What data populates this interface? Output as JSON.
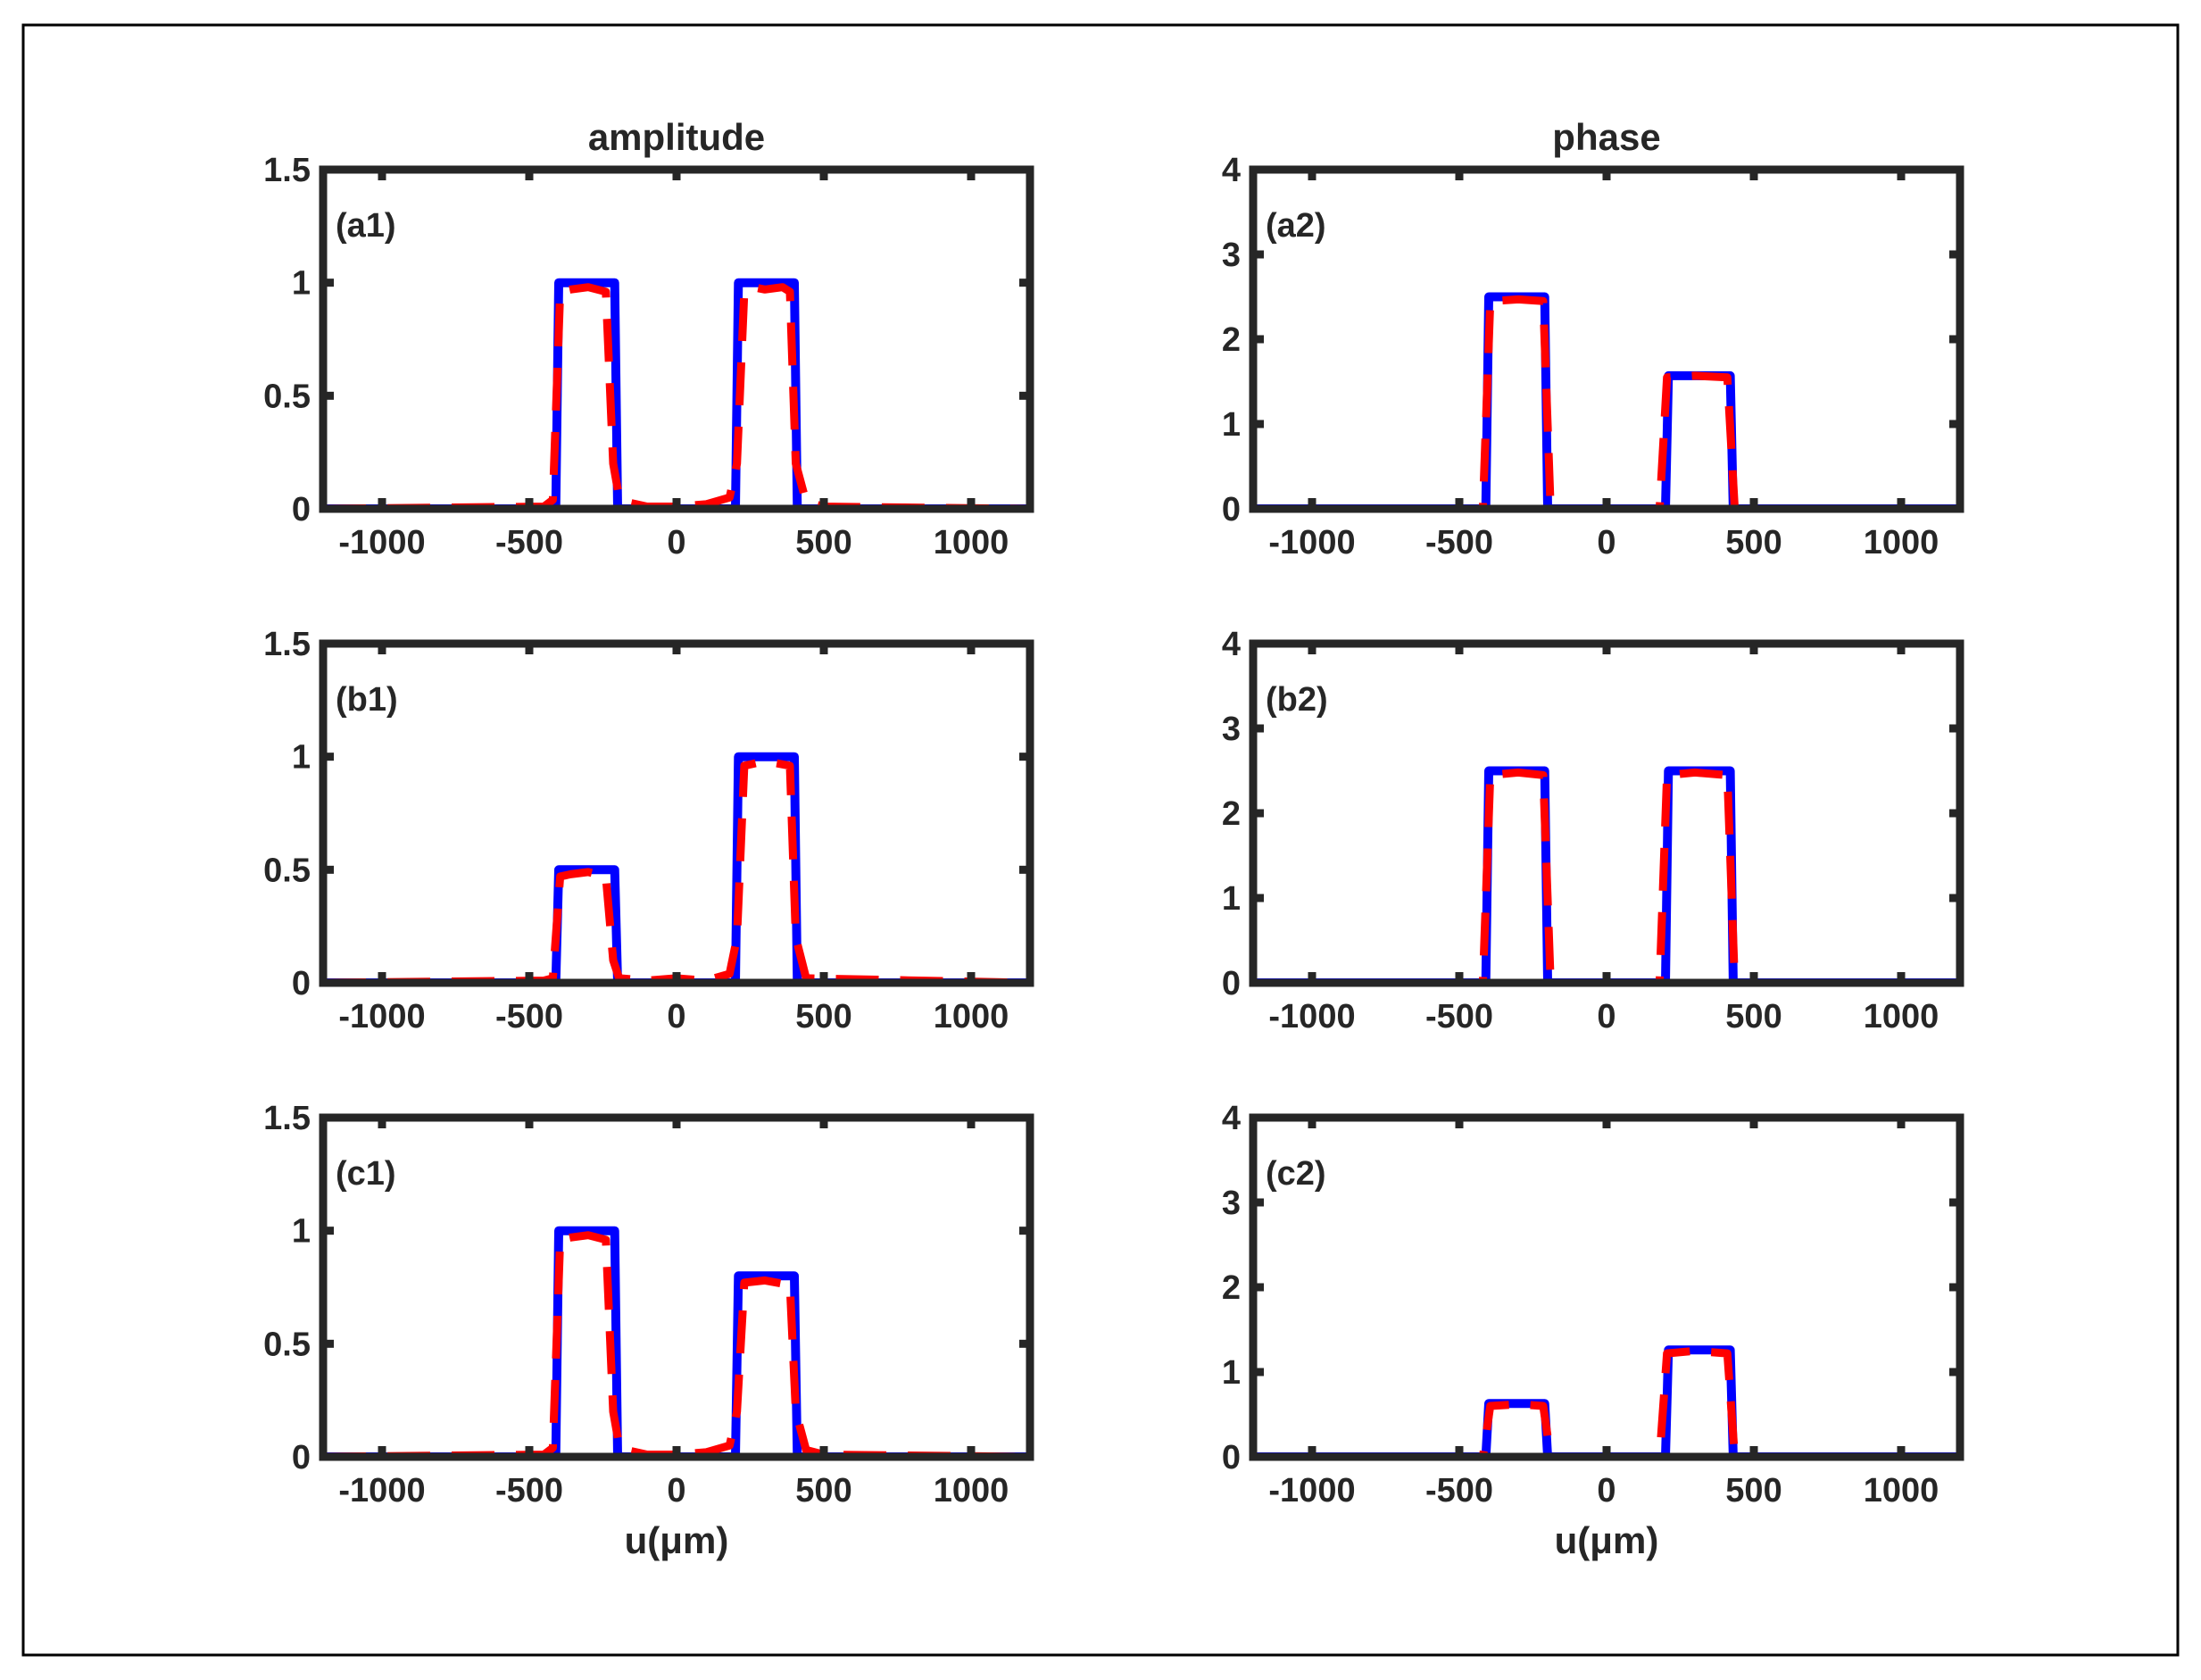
{
  "figure": {
    "column_titles": [
      "amplitude",
      "phase"
    ],
    "xlabel": "u(μm)",
    "colors": {
      "frame": "#262626",
      "border": "#000000",
      "blue": "#0000ff",
      "red": "#ff0000",
      "zero_line": "#262626"
    },
    "legend": "none"
  },
  "chart_data": [
    {
      "type": "line",
      "label": "(a1)",
      "title": "amplitude",
      "xlabel": "",
      "ylabel": "",
      "xlim": [
        -1200,
        1200
      ],
      "ylim": [
        0,
        1.5
      ],
      "xticks": [
        -1000,
        -500,
        0,
        500,
        1000
      ],
      "xtick_labels": [
        "-1000",
        "-500",
        "0",
        "500",
        "1000"
      ],
      "yticks": [
        0,
        0.5,
        1,
        1.5
      ],
      "ytick_labels": [
        "0",
        "0.5",
        "1",
        "1.5"
      ],
      "series": [
        {
          "name": "blue-solid",
          "x": [
            -1200,
            -410,
            -400,
            -210,
            -200,
            200,
            210,
            400,
            410,
            1200
          ],
          "y": [
            0,
            0,
            1,
            1,
            0,
            0,
            1,
            1,
            0,
            0
          ]
        },
        {
          "name": "red-dashed",
          "x": [
            -1200,
            -450,
            -420,
            -395,
            -360,
            -300,
            -240,
            -215,
            -195,
            -170,
            -100,
            0,
            100,
            180,
            205,
            230,
            260,
            300,
            360,
            385,
            405,
            440,
            500,
            1200
          ],
          "y": [
            0,
            0.01,
            0.04,
            0.96,
            0.97,
            0.98,
            0.96,
            0.2,
            0.05,
            0.03,
            0.01,
            0.01,
            0.02,
            0.05,
            0.2,
            0.96,
            0.98,
            0.97,
            0.98,
            0.96,
            0.2,
            0.03,
            0.01,
            0
          ]
        }
      ]
    },
    {
      "type": "line",
      "label": "(a2)",
      "title": "phase",
      "xlabel": "",
      "ylabel": "",
      "xlim": [
        -1200,
        1200
      ],
      "ylim": [
        0,
        4
      ],
      "xticks": [
        -1000,
        -500,
        0,
        500,
        1000
      ],
      "xtick_labels": [
        "-1000",
        "-500",
        "0",
        "500",
        "1000"
      ],
      "yticks": [
        0,
        1,
        2,
        3,
        4
      ],
      "ytick_labels": [
        "0",
        "1",
        "2",
        "3",
        "4"
      ],
      "series": [
        {
          "name": "blue-solid",
          "x": [
            -1200,
            -410,
            -400,
            -210,
            -200,
            200,
            210,
            420,
            430,
            1200
          ],
          "y": [
            0,
            0,
            2.5,
            2.5,
            0,
            0,
            1.57,
            1.57,
            0,
            0
          ]
        },
        {
          "name": "red-dashed",
          "x": [
            -1200,
            -420,
            -395,
            -300,
            -215,
            -190,
            180,
            205,
            300,
            410,
            435,
            1200
          ],
          "y": [
            0,
            0,
            2.45,
            2.47,
            2.45,
            0,
            0,
            1.55,
            1.57,
            1.55,
            0,
            0
          ]
        }
      ]
    },
    {
      "type": "line",
      "label": "(b1)",
      "title": "",
      "xlabel": "",
      "ylabel": "",
      "xlim": [
        -1200,
        1200
      ],
      "ylim": [
        0,
        1.5
      ],
      "xticks": [
        -1000,
        -500,
        0,
        500,
        1000
      ],
      "xtick_labels": [
        "-1000",
        "-500",
        "0",
        "500",
        "1000"
      ],
      "yticks": [
        0,
        0.5,
        1,
        1.5
      ],
      "ytick_labels": [
        "0",
        "0.5",
        "1",
        "1.5"
      ],
      "series": [
        {
          "name": "blue-solid",
          "x": [
            -1200,
            -410,
            -400,
            -210,
            -200,
            200,
            210,
            400,
            410,
            1200
          ],
          "y": [
            0,
            0,
            0.5,
            0.5,
            0,
            0,
            1,
            1,
            0,
            0
          ]
        },
        {
          "name": "red-dashed",
          "x": [
            -1200,
            -450,
            -420,
            -395,
            -360,
            -300,
            -240,
            -215,
            -195,
            -100,
            0,
            100,
            180,
            205,
            230,
            300,
            385,
            405,
            440,
            1200
          ],
          "y": [
            0,
            0.01,
            0.02,
            0.47,
            0.48,
            0.49,
            0.47,
            0.1,
            0.02,
            0.01,
            0.02,
            0.01,
            0.04,
            0.2,
            0.96,
            0.98,
            0.96,
            0.2,
            0.02,
            0
          ]
        }
      ]
    },
    {
      "type": "line",
      "label": "(b2)",
      "title": "",
      "xlabel": "",
      "ylabel": "",
      "xlim": [
        -1200,
        1200
      ],
      "ylim": [
        0,
        4
      ],
      "xticks": [
        -1000,
        -500,
        0,
        500,
        1000
      ],
      "xtick_labels": [
        "-1000",
        "-500",
        "0",
        "500",
        "1000"
      ],
      "yticks": [
        0,
        1,
        2,
        3,
        4
      ],
      "ytick_labels": [
        "0",
        "1",
        "2",
        "3",
        "4"
      ],
      "series": [
        {
          "name": "blue-solid",
          "x": [
            -1200,
            -410,
            -400,
            -210,
            -200,
            200,
            210,
            420,
            430,
            1200
          ],
          "y": [
            0,
            0,
            2.5,
            2.5,
            0,
            0,
            2.5,
            2.5,
            0,
            0
          ]
        },
        {
          "name": "red-dashed",
          "x": [
            -1200,
            -420,
            -395,
            -300,
            -215,
            -190,
            180,
            205,
            300,
            410,
            435,
            1200
          ],
          "y": [
            0,
            0,
            2.45,
            2.48,
            2.45,
            0,
            0,
            2.45,
            2.48,
            2.45,
            0,
            0
          ]
        }
      ]
    },
    {
      "type": "line",
      "label": "(c1)",
      "title": "",
      "xlabel": "u(μm)",
      "ylabel": "",
      "xlim": [
        -1200,
        1200
      ],
      "ylim": [
        0,
        1.5
      ],
      "xticks": [
        -1000,
        -500,
        0,
        500,
        1000
      ],
      "xtick_labels": [
        "-1000",
        "-500",
        "0",
        "500",
        "1000"
      ],
      "yticks": [
        0,
        0.5,
        1,
        1.5
      ],
      "ytick_labels": [
        "0",
        "0.5",
        "1",
        "1.5"
      ],
      "series": [
        {
          "name": "blue-solid",
          "x": [
            -1200,
            -410,
            -400,
            -210,
            -200,
            200,
            210,
            400,
            410,
            1200
          ],
          "y": [
            0,
            0,
            1,
            1,
            0,
            0,
            0.8,
            0.8,
            0,
            0
          ]
        },
        {
          "name": "red-dashed",
          "x": [
            -1200,
            -450,
            -420,
            -395,
            -360,
            -300,
            -240,
            -215,
            -195,
            -170,
            -100,
            0,
            100,
            180,
            205,
            230,
            300,
            385,
            405,
            440,
            500,
            1200
          ],
          "y": [
            0,
            0.01,
            0.04,
            0.96,
            0.97,
            0.98,
            0.96,
            0.2,
            0.05,
            0.03,
            0.01,
            0.01,
            0.02,
            0.05,
            0.2,
            0.77,
            0.78,
            0.76,
            0.2,
            0.03,
            0.01,
            0
          ]
        }
      ]
    },
    {
      "type": "line",
      "label": "(c2)",
      "title": "",
      "xlabel": "u(μm)",
      "ylabel": "",
      "xlim": [
        -1200,
        1200
      ],
      "ylim": [
        0,
        4
      ],
      "xticks": [
        -1000,
        -500,
        0,
        500,
        1000
      ],
      "xtick_labels": [
        "-1000",
        "-500",
        "0",
        "500",
        "1000"
      ],
      "yticks": [
        0,
        1,
        2,
        3,
        4
      ],
      "ytick_labels": [
        "0",
        "1",
        "2",
        "3",
        "4"
      ],
      "series": [
        {
          "name": "blue-solid",
          "x": [
            -1200,
            -410,
            -400,
            -210,
            -200,
            200,
            210,
            420,
            430,
            1200
          ],
          "y": [
            0,
            0,
            0.63,
            0.63,
            0,
            0,
            1.26,
            1.26,
            0,
            0
          ]
        },
        {
          "name": "red-dashed",
          "x": [
            -1200,
            -420,
            -395,
            -300,
            -215,
            -190,
            180,
            205,
            300,
            410,
            435,
            1200
          ],
          "y": [
            0,
            0,
            0.6,
            0.62,
            0.6,
            0,
            0,
            1.22,
            1.25,
            1.22,
            0,
            0
          ]
        }
      ]
    }
  ]
}
